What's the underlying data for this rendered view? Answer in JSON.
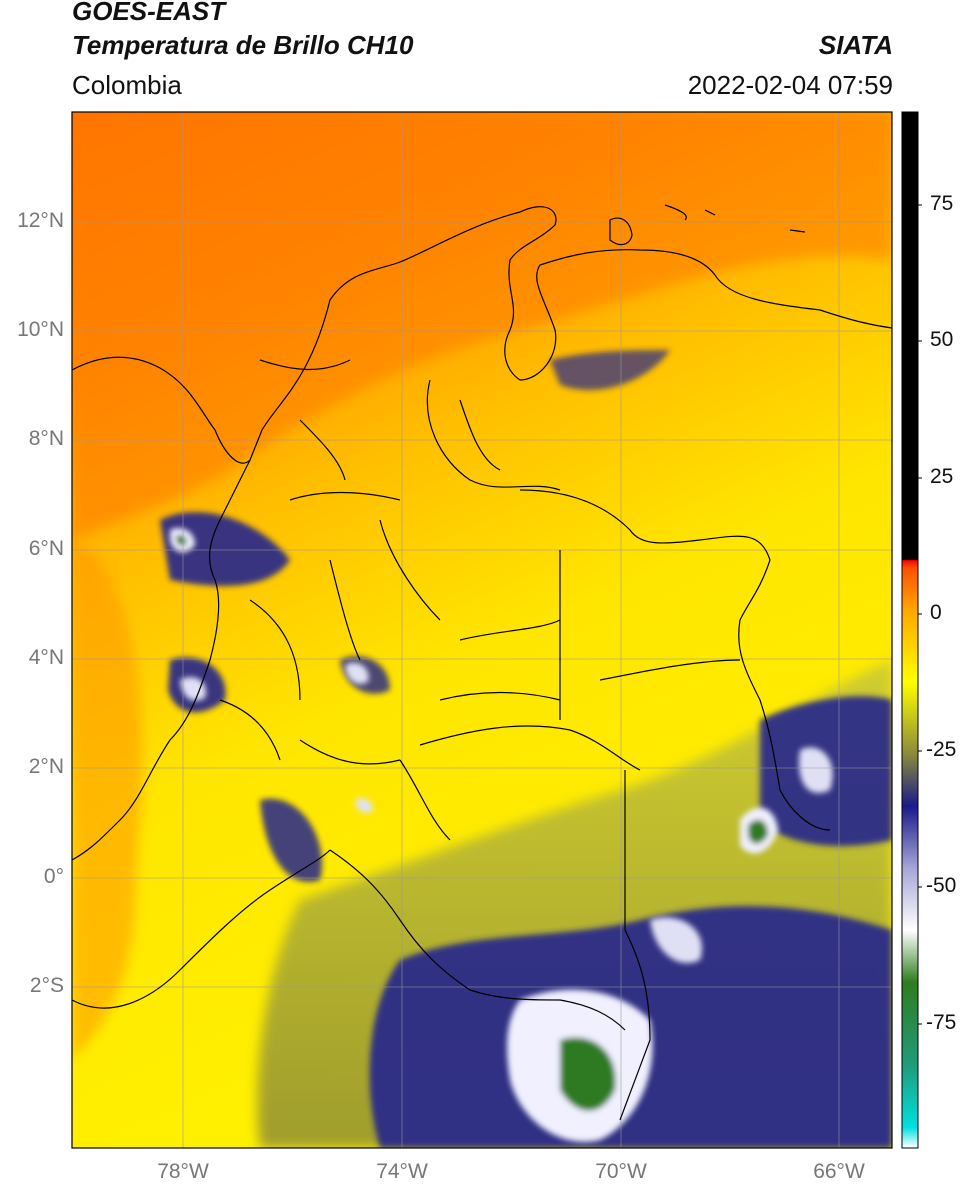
{
  "header": {
    "satellite": "GOES-EAST",
    "product": "Temperatura de Brillo CH10",
    "region": "Colombia",
    "brand": "SIATA",
    "datetime": "2022-02-04 07:59"
  },
  "axes": {
    "lat_labels": [
      "12°N",
      "10°N",
      "8°N",
      "6°N",
      "4°N",
      "2°N",
      "0°",
      "2°S"
    ],
    "lon_labels": [
      "78°W",
      "74°W",
      "70°W",
      "66°W"
    ]
  },
  "colorbar": {
    "ticks": [
      "75",
      "50",
      "25",
      "0",
      "-25",
      "-50",
      "-75"
    ],
    "stops": [
      "#00e0e0",
      "#1f9c7a",
      "#2e7d1e",
      "#ffffff",
      "#a6a6d8",
      "#1a1a8a",
      "#8a8a3a",
      "#c8c835",
      "#ffff00",
      "#ffa500",
      "#ff0000",
      "#000000"
    ]
  },
  "colors": {
    "warm_ocean": "#ff7400",
    "land_warm": "#ffe200",
    "cloud_mid": "#1b1b8c",
    "cloud_cold": "#ffffff",
    "cloud_coldest": "#2f7a22"
  }
}
